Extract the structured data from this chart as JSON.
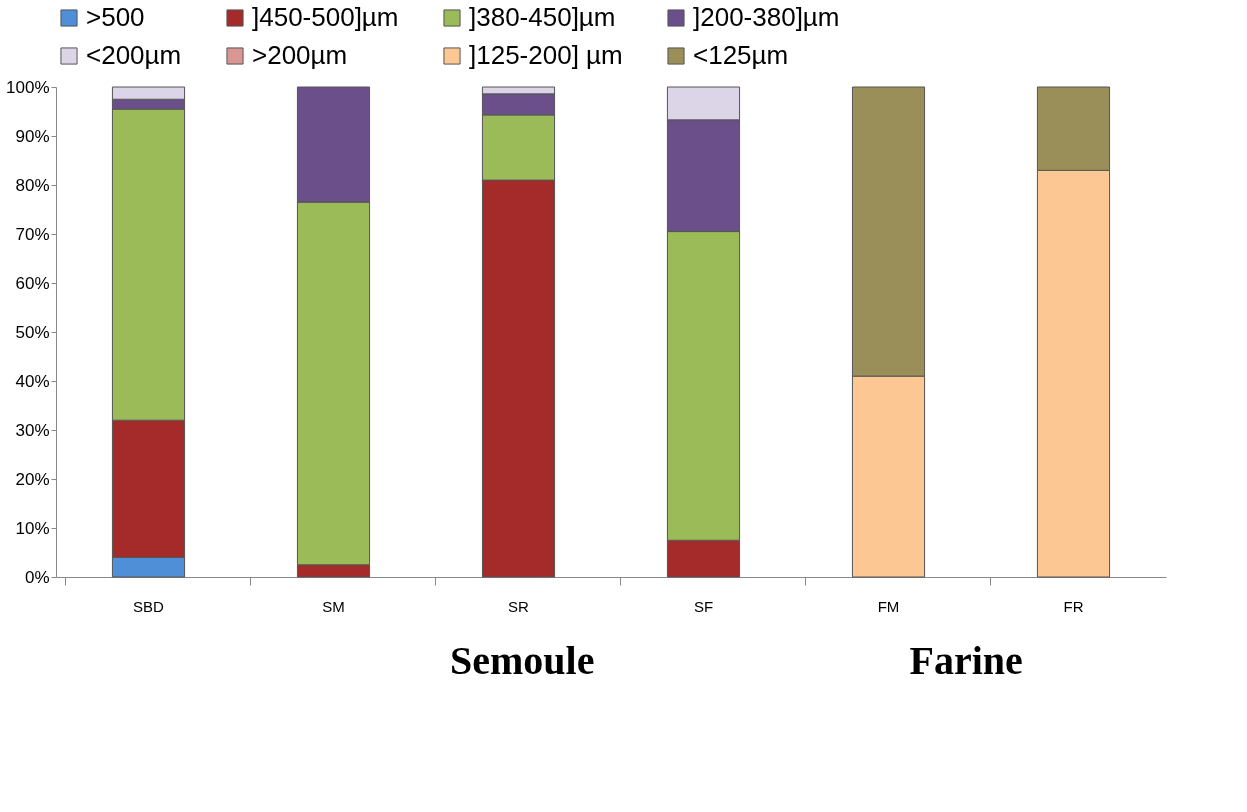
{
  "chart_data": {
    "type": "bar",
    "stacked": true,
    "categories": [
      "SBD",
      "SM",
      "SR",
      "SF",
      "FM",
      "FR"
    ],
    "series": [
      {
        "name": ">500",
        "color": "#4f8fd8",
        "values": [
          4,
          null,
          null,
          null,
          null,
          null
        ]
      },
      {
        "name": " ]450-500]µm",
        "color": "#a52a2a",
        "values": [
          28,
          2.5,
          81,
          7.5,
          null,
          null
        ]
      },
      {
        "name": " ]380-450]µm",
        "color": "#9bbb59",
        "values": [
          63.5,
          74,
          13.3,
          63,
          null,
          null
        ]
      },
      {
        "name": "]200-380]µm",
        "color": "#6a4f8a",
        "values": [
          2,
          23.5,
          4.3,
          22.8,
          null,
          null
        ]
      },
      {
        "name": "<200µm",
        "color": "#dcd5e8",
        "values": [
          2.5,
          null,
          1.4,
          6.7,
          null,
          null
        ]
      },
      {
        "name": ">200µm",
        "color": "#d99694",
        "values": [
          null,
          null,
          null,
          null,
          null,
          null
        ]
      },
      {
        "name": "]125-200] µm",
        "color": "#fcc793",
        "values": [
          null,
          null,
          null,
          null,
          41,
          83
        ]
      },
      {
        "name": "<125µm",
        "color": "#9a8f58",
        "values": [
          null,
          null,
          null,
          null,
          59,
          17
        ]
      }
    ],
    "ylim": [
      0,
      100
    ],
    "yticks": [
      {
        "value": 0,
        "label": "0%"
      },
      {
        "value": 10,
        "label": "10%"
      },
      {
        "value": 20,
        "label": "20%"
      },
      {
        "value": 30,
        "label": "30%"
      },
      {
        "value": 40,
        "label": "40%"
      },
      {
        "value": 50,
        "label": "50%"
      },
      {
        "value": 60,
        "label": "60%"
      },
      {
        "value": 70,
        "label": "70%"
      },
      {
        "value": 80,
        "label": "80%"
      },
      {
        "value": 90,
        "label": "90%"
      },
      {
        "value": 100,
        "label": "100%"
      }
    ],
    "grid": false,
    "legend": "top",
    "annotations": [
      "Semoule",
      "Farine"
    ]
  }
}
